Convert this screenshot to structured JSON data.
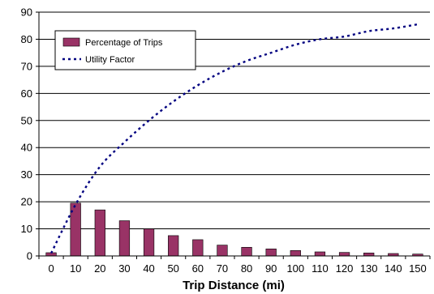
{
  "chart_data": {
    "type": "bar",
    "xlabel": "Trip Distance (mi)",
    "ylabel": "",
    "ylim": [
      0,
      90
    ],
    "yticks": [
      0,
      10,
      20,
      30,
      40,
      50,
      60,
      70,
      80,
      90
    ],
    "categories": [
      "0",
      "10",
      "20",
      "30",
      "40",
      "50",
      "60",
      "70",
      "80",
      "90",
      "100",
      "110",
      "120",
      "130",
      "140",
      "150"
    ],
    "grid": "horizontal",
    "legend_position": "top-left",
    "series": [
      {
        "name": "Percentage of Trips",
        "kind": "bar",
        "color": "#993366",
        "values": [
          1.2,
          19.5,
          17.0,
          13.0,
          10.0,
          7.5,
          6.0,
          4.0,
          3.2,
          2.6,
          2.0,
          1.5,
          1.3,
          1.1,
          0.9,
          0.7
        ]
      },
      {
        "name": "Utility Factor",
        "kind": "line",
        "style": "dotted",
        "color": "#000080",
        "x": [
          0,
          10,
          20,
          30,
          40,
          50,
          60,
          70,
          80,
          90,
          100,
          110,
          120,
          130,
          140,
          150
        ],
        "values": [
          1,
          19,
          33,
          42,
          50,
          57,
          63,
          68,
          72,
          75,
          78,
          80,
          81,
          83,
          84,
          85.5
        ]
      }
    ]
  }
}
